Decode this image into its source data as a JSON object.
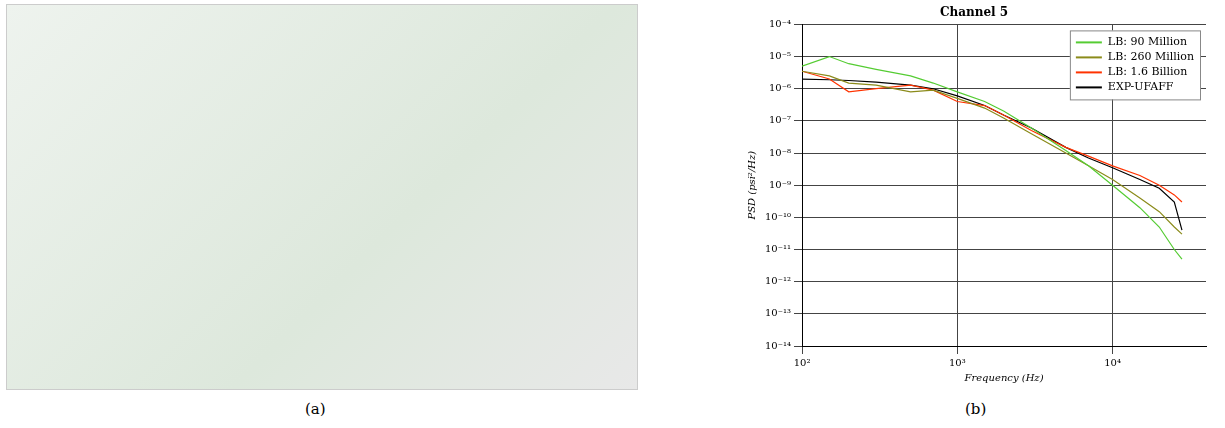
{
  "panel_labels": [
    "(a)",
    "(b)"
  ],
  "chart_data": {
    "type": "line",
    "title": "Channel 5",
    "x_label": "Frequency (Hz)",
    "y_label": "PSD (psi²/Hz)",
    "log": true,
    "grid": true,
    "legend": "upper-right",
    "x": [
      100,
      150,
      200,
      300,
      500,
      700,
      1000,
      1500,
      2000,
      3000,
      5000,
      7000,
      10000,
      15000,
      20000,
      25000,
      28000
    ],
    "series": [
      {
        "name": "LB: 90 Million",
        "color": "#55cc33",
        "values": [
          5e-06,
          1e-05,
          6e-06,
          4e-06,
          2.5e-06,
          1.5e-06,
          8e-07,
          4e-07,
          2e-07,
          6e-08,
          1.2e-08,
          4e-09,
          1e-09,
          2e-10,
          5e-11,
          1e-11,
          5e-12
        ]
      },
      {
        "name": "LB: 260 Million",
        "color": "#8b8b1a",
        "values": [
          3.5e-06,
          2.5e-06,
          1.5e-06,
          1.3e-06,
          8e-07,
          9e-07,
          5e-07,
          2.5e-07,
          1.2e-07,
          4e-08,
          1e-08,
          4e-09,
          1.5e-09,
          4e-10,
          1.5e-10,
          5e-11,
          3e-11
        ]
      },
      {
        "name": "LB: 1.6 Billion",
        "color": "#ff3300",
        "values": [
          3.5e-06,
          2e-06,
          8e-07,
          1e-06,
          1.3e-06,
          9e-07,
          4e-07,
          3e-07,
          1.5e-07,
          5e-08,
          1.5e-08,
          8e-09,
          4e-09,
          2e-09,
          1e-09,
          5e-10,
          3e-10
        ]
      },
      {
        "name": "EXP-UFAFF",
        "color": "#000000",
        "values": [
          2e-06,
          1.9e-06,
          1.8e-06,
          1.6e-06,
          1.3e-06,
          1e-06,
          6e-07,
          3e-07,
          1.5e-07,
          6e-08,
          1.5e-08,
          7e-09,
          3.5e-09,
          1.5e-09,
          8e-10,
          3e-10,
          4e-11
        ]
      }
    ],
    "xlim": [
      100,
      40000
    ],
    "xticks": [
      {
        "value": 100,
        "label": "10²"
      },
      {
        "value": 1000,
        "label": "10³"
      },
      {
        "value": 10000,
        "label": "10⁴"
      }
    ],
    "ylim": [
      1e-14,
      0.0001
    ],
    "yticks": [
      {
        "value": 1e-14,
        "label": "10⁻¹⁴"
      },
      {
        "value": 1e-13,
        "label": "10⁻¹³"
      },
      {
        "value": 1e-12,
        "label": "10⁻¹²"
      },
      {
        "value": 1e-11,
        "label": "10⁻¹¹"
      },
      {
        "value": 1e-10,
        "label": "10⁻¹⁰"
      },
      {
        "value": 1e-09,
        "label": "10⁻⁹"
      },
      {
        "value": 1e-08,
        "label": "10⁻⁸"
      },
      {
        "value": 1e-07,
        "label": "10⁻⁷"
      },
      {
        "value": 1e-06,
        "label": "10⁻⁶"
      },
      {
        "value": 1e-05,
        "label": "10⁻⁵"
      },
      {
        "value": 0.0001,
        "label": "10⁻⁴"
      }
    ]
  }
}
